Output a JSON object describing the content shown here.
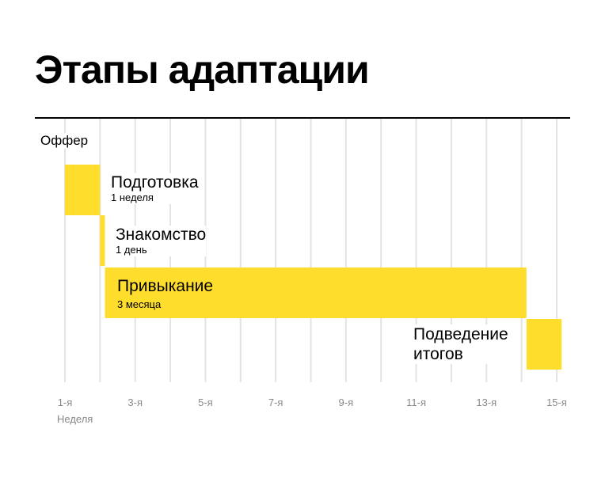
{
  "chart_data": {
    "type": "gantt",
    "title": "Этапы адаптации",
    "xlabel": "Неделя",
    "xlim": [
      1,
      15
    ],
    "grid": true,
    "tick_labels": [
      {
        "x": 1,
        "label": "1-я"
      },
      {
        "x": 3,
        "label": "3-я"
      },
      {
        "x": 5,
        "label": "5-я"
      },
      {
        "x": 7,
        "label": "7-я"
      },
      {
        "x": 9,
        "label": "9-я"
      },
      {
        "x": 11,
        "label": "11-я"
      },
      {
        "x": 13,
        "label": "13-я"
      },
      {
        "x": 15,
        "label": "15-я"
      }
    ],
    "milestone": {
      "label": "Оффер",
      "x": 1
    },
    "tasks": [
      {
        "name": "Подготовка",
        "duration": "1 неделя",
        "start": 1,
        "end": 2
      },
      {
        "name": "Знакомство",
        "duration": "1 день",
        "start": 2,
        "end": 2.14
      },
      {
        "name": "Привыкание",
        "duration": "3 месяца",
        "start": 2.14,
        "end": 14.14
      },
      {
        "name": "Подведение итогов",
        "duration": "",
        "start": 14.14,
        "end": 15.14
      }
    ],
    "bar_color": "#FFDD2D",
    "grid_color": "#E3E3E3"
  }
}
